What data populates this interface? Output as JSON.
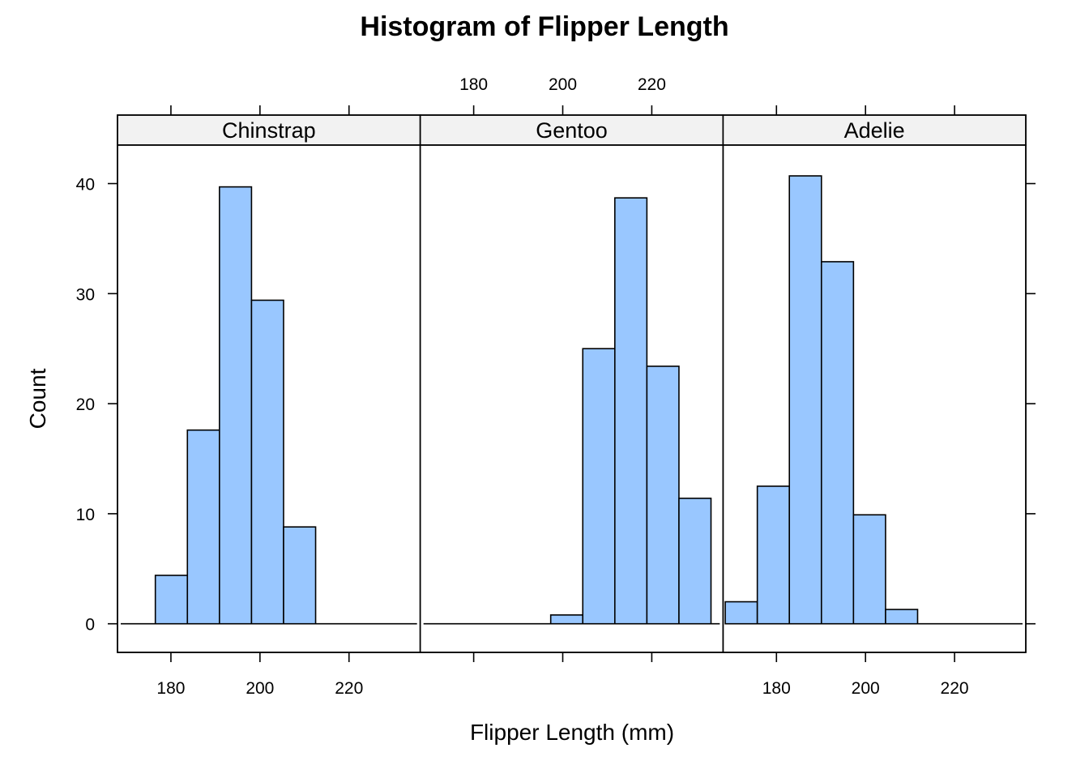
{
  "chart_data": {
    "type": "bar",
    "subtype": "histogram",
    "title": "Histogram of Flipper Length",
    "xlabel": "Flipper Length (mm)",
    "ylabel": "Count",
    "xlim": [
      168,
      236
    ],
    "ylim": [
      -2.6,
      43.5
    ],
    "x_ticks": [
      180,
      200,
      220
    ],
    "y_ticks": [
      0,
      10,
      20,
      30,
      40
    ],
    "grid": false,
    "strip_fill": "#f2f2f2",
    "bar_fill": "#99c7ff",
    "panels": [
      {
        "name": "Chinstrap",
        "bins": [
          {
            "x0": 176.5,
            "x1": 183.7,
            "count": 4.4
          },
          {
            "x0": 183.7,
            "x1": 190.9,
            "count": 17.6
          },
          {
            "x0": 190.9,
            "x1": 198.1,
            "count": 39.7
          },
          {
            "x0": 198.1,
            "x1": 205.3,
            "count": 29.4
          },
          {
            "x0": 205.3,
            "x1": 212.5,
            "count": 8.8
          }
        ]
      },
      {
        "name": "Gentoo",
        "bins": [
          {
            "x0": 197.3,
            "x1": 204.5,
            "count": 0.8
          },
          {
            "x0": 204.5,
            "x1": 211.7,
            "count": 25.0
          },
          {
            "x0": 211.7,
            "x1": 218.9,
            "count": 38.7
          },
          {
            "x0": 218.9,
            "x1": 226.1,
            "count": 23.4
          },
          {
            "x0": 226.1,
            "x1": 233.3,
            "count": 11.4
          }
        ]
      },
      {
        "name": "Adelie",
        "bins": [
          {
            "x0": 168.5,
            "x1": 175.7,
            "count": 2.0
          },
          {
            "x0": 175.7,
            "x1": 182.9,
            "count": 12.5
          },
          {
            "x0": 182.9,
            "x1": 190.1,
            "count": 40.7
          },
          {
            "x0": 190.1,
            "x1": 197.3,
            "count": 32.9
          },
          {
            "x0": 197.3,
            "x1": 204.5,
            "count": 9.9
          },
          {
            "x0": 204.5,
            "x1": 211.7,
            "count": 1.3
          }
        ]
      }
    ]
  }
}
